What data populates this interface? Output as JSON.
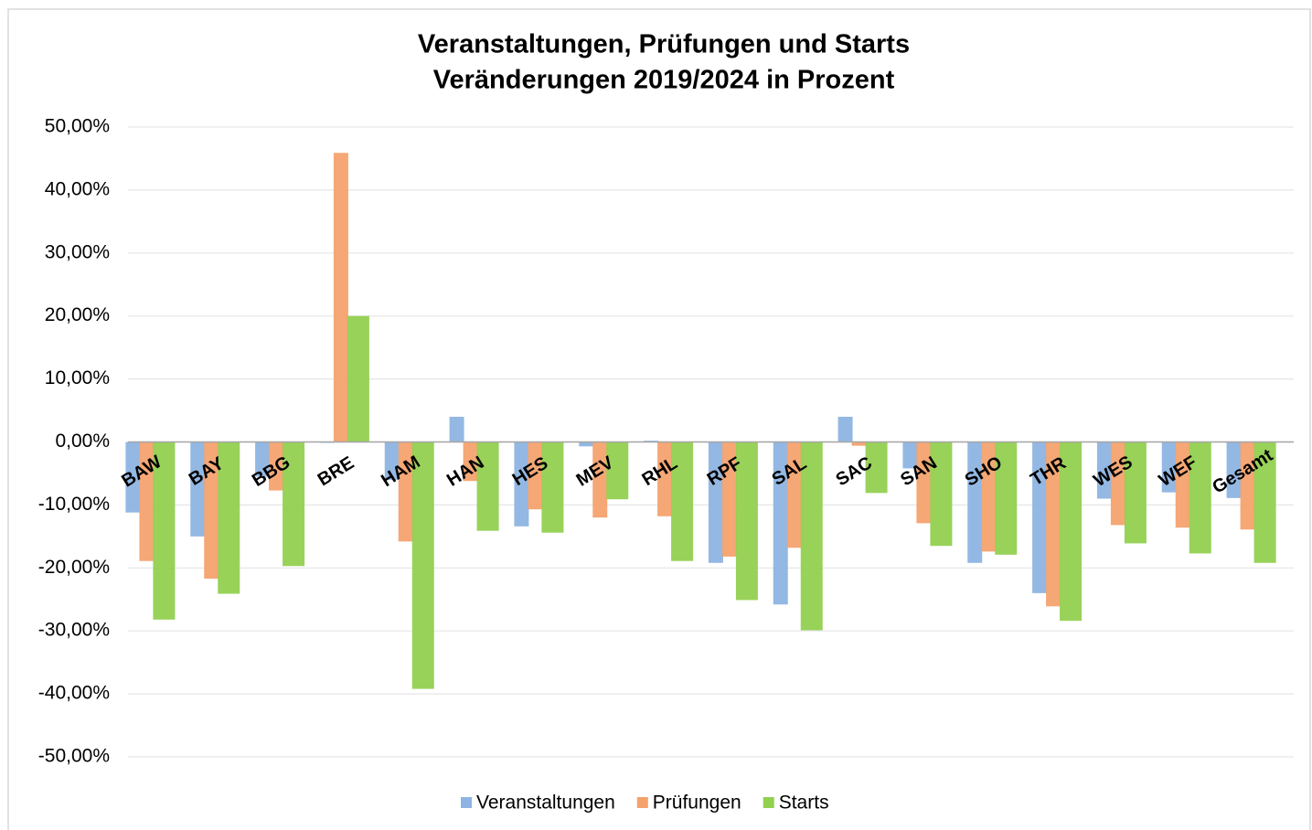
{
  "chart_data": {
    "type": "bar",
    "title": "Veranstaltungen, Prüfungen und Starts",
    "subtitle": "Veränderungen 2019/2024 in Prozent",
    "categories": [
      "BAW",
      "BAY",
      "BBG",
      "BRE",
      "HAM",
      "HAN",
      "HES",
      "MEV",
      "RHL",
      "RPF",
      "SAL",
      "SAC",
      "SAN",
      "SHO",
      "THR",
      "WES",
      "WEF",
      "Gesamt"
    ],
    "series": [
      {
        "name": "Veranstaltungen",
        "color": "#8db4e2",
        "values": [
          -11.2,
          -15.0,
          -5.5,
          0,
          -6.0,
          4.0,
          -13.4,
          -0.7,
          0.2,
          -19.2,
          -25.8,
          4.0,
          -4.2,
          -19.2,
          -24.0,
          -9.0,
          -8.0,
          -8.9
        ]
      },
      {
        "name": "Prüfungen",
        "color": "#f4a26e",
        "values": [
          -18.9,
          -21.7,
          -7.7,
          45.9,
          -15.8,
          -6.2,
          -10.7,
          -12.0,
          -11.8,
          -18.2,
          -16.8,
          -0.6,
          -12.9,
          -17.4,
          -26.1,
          -13.2,
          -13.6,
          -13.9
        ]
      },
      {
        "name": "Starts",
        "color": "#92d050",
        "values": [
          -28.2,
          -24.1,
          -19.7,
          20.0,
          -39.2,
          -14.1,
          -14.4,
          -9.1,
          -18.9,
          -25.1,
          -29.9,
          -8.1,
          -16.5,
          -17.9,
          -28.4,
          -16.1,
          -17.7,
          -19.2
        ]
      }
    ],
    "ylim": [
      -50,
      50
    ],
    "yticks": [
      {
        "value": -50,
        "label": "-50,00%"
      },
      {
        "value": -40,
        "label": "-40,00%"
      },
      {
        "value": -30,
        "label": "-30,00%"
      },
      {
        "value": -20,
        "label": "-20,00%"
      },
      {
        "value": -10,
        "label": "-10,00%"
      },
      {
        "value": 0,
        "label": "0,00%"
      },
      {
        "value": 10,
        "label": "10,00%"
      },
      {
        "value": 20,
        "label": "20,00%"
      },
      {
        "value": 30,
        "label": "30,00%"
      },
      {
        "value": 40,
        "label": "40,00%"
      },
      {
        "value": 50,
        "label": "50,00%"
      }
    ],
    "grid": true,
    "legend": "bottom"
  }
}
